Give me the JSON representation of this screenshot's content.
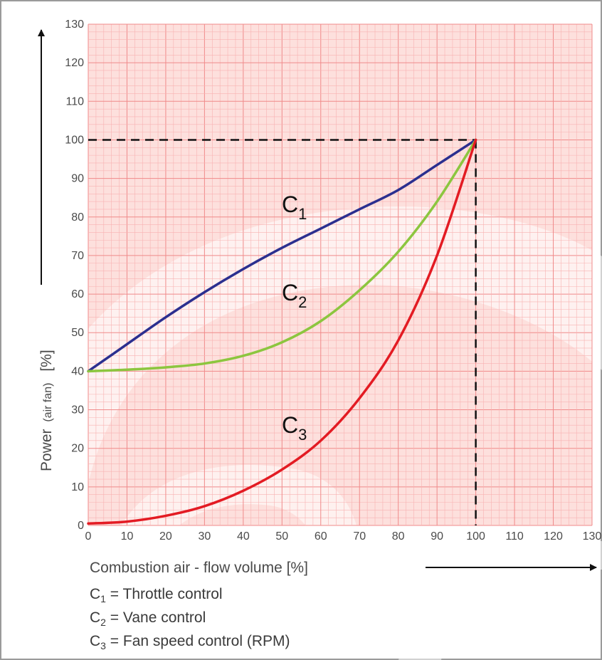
{
  "chart_data": {
    "type": "line",
    "xlabel": "Combustion air - flow volume [%]",
    "ylabel": {
      "main": "Power",
      "sub": "(air fan)",
      "unit": "[%]"
    },
    "xlim": [
      0,
      130
    ],
    "ylim": [
      0,
      130
    ],
    "x_ticks": [
      "0",
      "10",
      "20",
      "30",
      "40",
      "50",
      "60",
      "70",
      "80",
      "90",
      "100",
      "110",
      "120",
      "130"
    ],
    "y_ticks": [
      "0",
      "10",
      "20",
      "30",
      "40",
      "50",
      "60",
      "70",
      "80",
      "90",
      "100",
      "110",
      "120",
      "130"
    ],
    "grid": true,
    "reference_point": {
      "x": 100,
      "y": 100,
      "style": "dashed"
    },
    "series": [
      {
        "name": "C1",
        "color": "#2b2f8f",
        "x": [
          0,
          10,
          20,
          30,
          40,
          50,
          60,
          70,
          80,
          90,
          100
        ],
        "y": [
          40,
          47,
          54,
          60.5,
          66.5,
          72,
          77,
          82,
          87,
          93.5,
          100
        ]
      },
      {
        "name": "C2",
        "color": "#8cc63f",
        "x": [
          0,
          10,
          20,
          30,
          40,
          50,
          60,
          70,
          80,
          90,
          100
        ],
        "y": [
          40,
          40.4,
          41,
          42,
          44,
          47.5,
          53,
          61,
          71,
          84,
          100
        ]
      },
      {
        "name": "C3",
        "color": "#e31b23",
        "x": [
          0,
          10,
          20,
          30,
          40,
          50,
          60,
          70,
          80,
          90,
          100
        ],
        "y": [
          0.5,
          1,
          2.5,
          5,
          9,
          14.5,
          22,
          33,
          48,
          70,
          100
        ]
      }
    ]
  },
  "curve_labels": [
    {
      "id": "c1",
      "letter": "C",
      "index": "1"
    },
    {
      "id": "c2",
      "letter": "C",
      "index": "2"
    },
    {
      "id": "c3",
      "letter": "C",
      "index": "3"
    }
  ],
  "legend": [
    {
      "letter": "C",
      "index": "1",
      "text": " = Throttle control"
    },
    {
      "letter": "C",
      "index": "2",
      "text": " = Vane control"
    },
    {
      "letter": "C",
      "index": "3",
      "text": " = Fan speed control (RPM)"
    }
  ],
  "colors": {
    "grid_minor": "#f8b2b2",
    "grid_major": "#f08a8a",
    "plot_background": "#fde0dd",
    "frame": "#9a9a9a"
  }
}
